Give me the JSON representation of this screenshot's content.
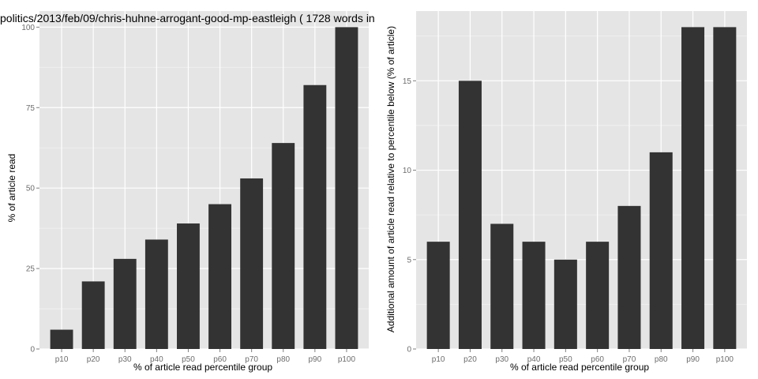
{
  "colors": {
    "panel": "#e5e5e5",
    "grid_major": "#ffffff",
    "grid_minor": "#f2f2f2",
    "bar": "#333333",
    "tick_text": "#6d6d6d"
  },
  "chart_data": [
    {
      "type": "bar",
      "title": "politics/2013/feb/09/chris-huhne-arrogant-good-mp-eastleigh ( 1728 words in",
      "xlabel": "% of article read percentile group",
      "ylabel": "% of article read",
      "categories": [
        "p10",
        "p20",
        "p30",
        "p40",
        "p50",
        "p60",
        "p70",
        "p80",
        "p90",
        "p100"
      ],
      "values": [
        6,
        21,
        28,
        34,
        39,
        45,
        53,
        64,
        82,
        100
      ],
      "ylim": [
        0,
        100
      ],
      "yticks": [
        0,
        25,
        50,
        75,
        100
      ],
      "grid": true
    },
    {
      "type": "bar",
      "title": "",
      "xlabel": "% of article read percentile group",
      "ylabel": "Additional amount of article read relative to percentile below (% of article)",
      "categories": [
        "p10",
        "p20",
        "p30",
        "p40",
        "p50",
        "p60",
        "p70",
        "p80",
        "p90",
        "p100"
      ],
      "values": [
        6,
        15,
        7,
        6,
        5,
        6,
        8,
        11,
        18,
        18
      ],
      "ylim": [
        0,
        18
      ],
      "yticks": [
        0,
        5,
        10,
        15
      ],
      "grid": true
    }
  ]
}
